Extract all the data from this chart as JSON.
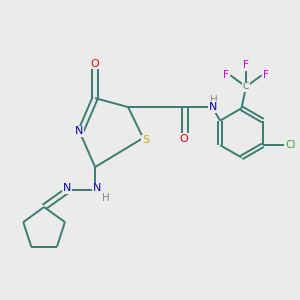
{
  "background_color": "#ebebeb",
  "bond_color": "#3a7d6e",
  "atom_colors": {
    "O": "#ff0000",
    "N": "#0000cd",
    "S": "#ccaa00",
    "Cl": "#3aaa3a",
    "F": "#dd00dd",
    "H": "#888888",
    "C": "#3a7d6e"
  }
}
